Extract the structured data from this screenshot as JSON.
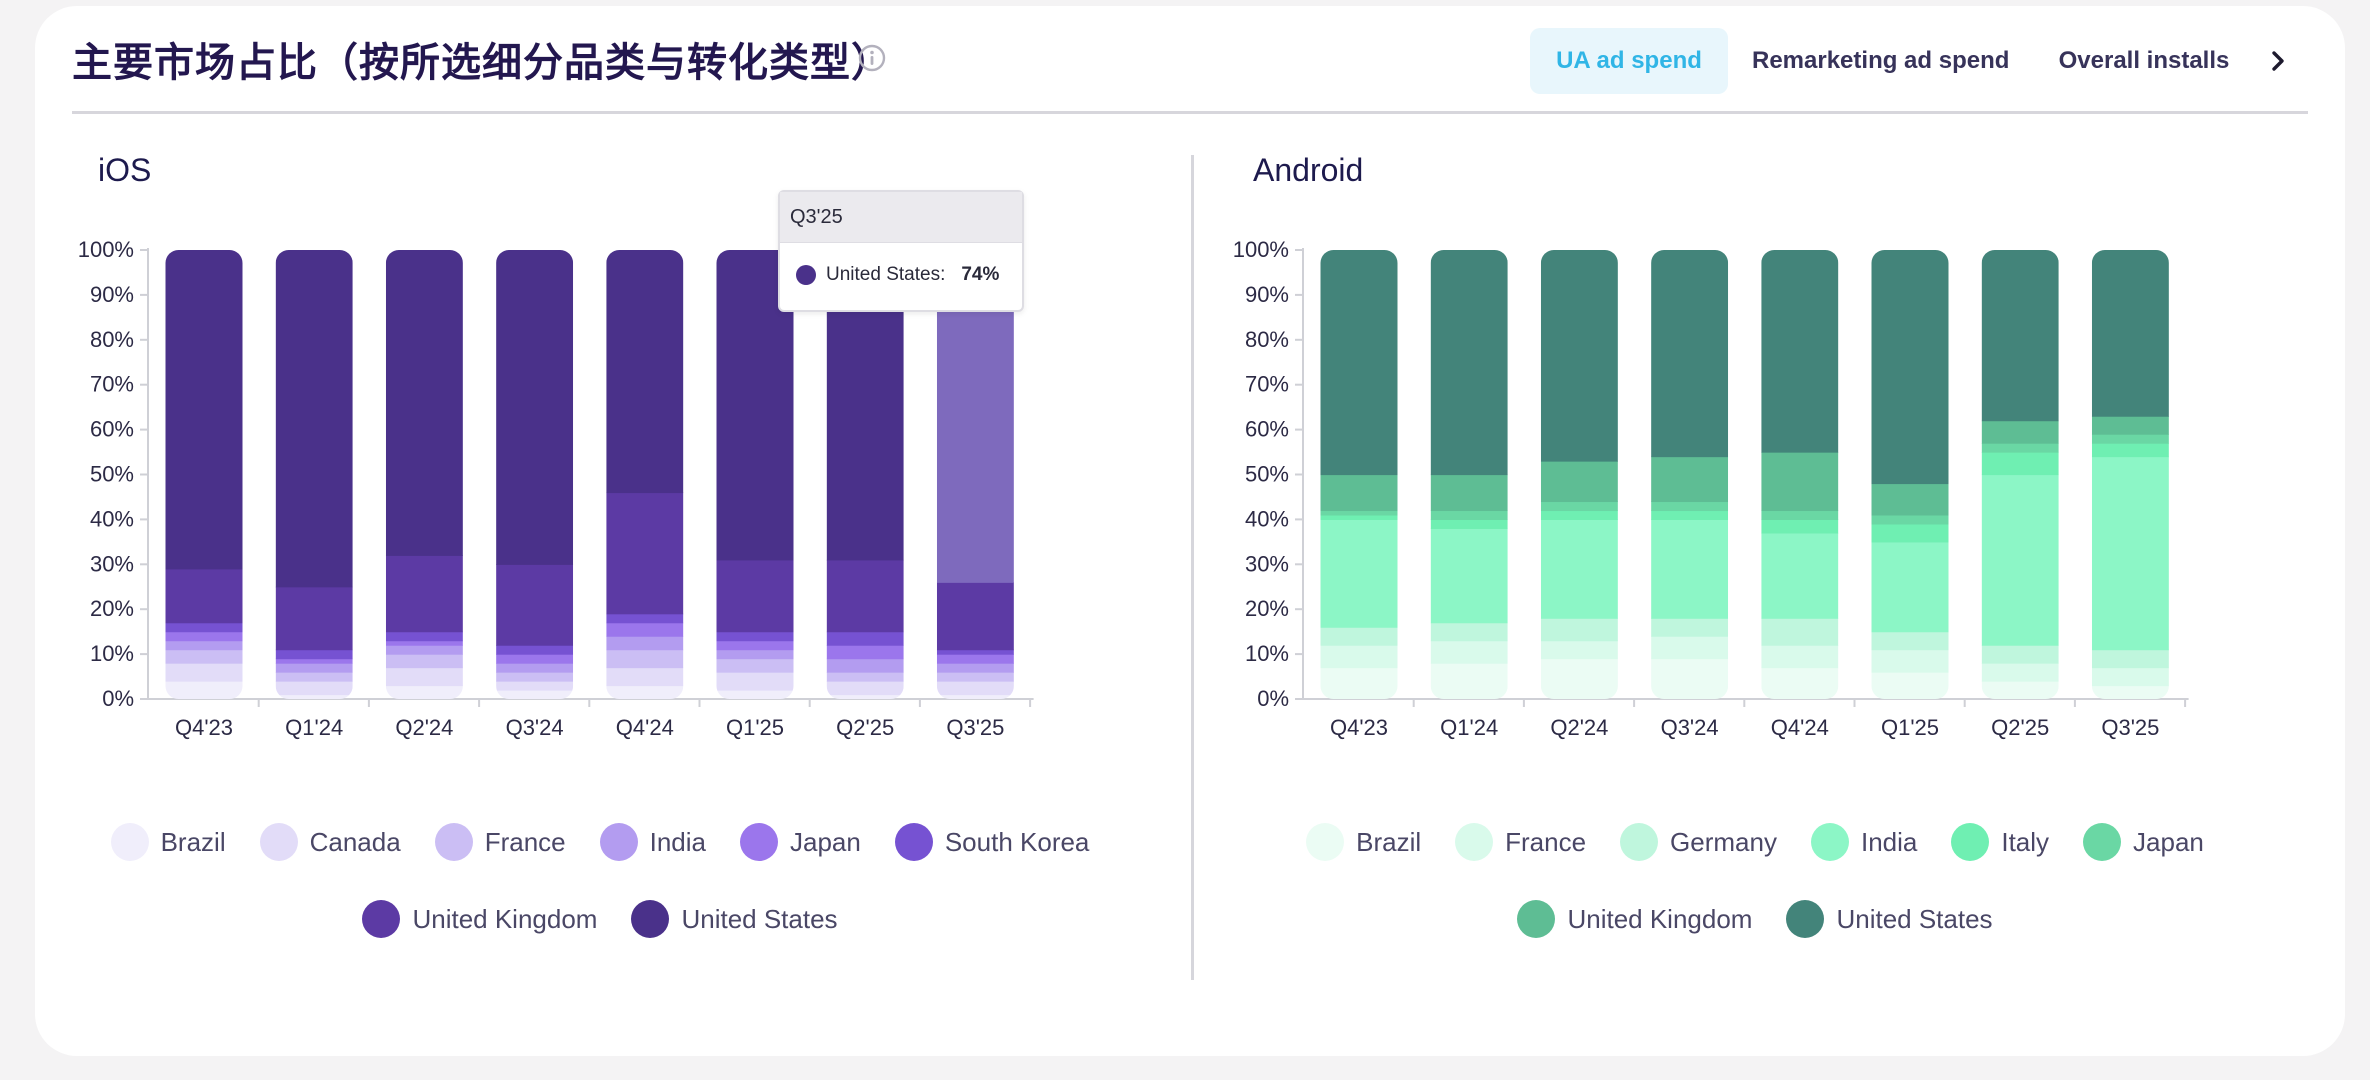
{
  "header": {
    "title": "主要市场占比（按所选细分品类与转化类型）",
    "tabs": [
      "UA ad spend",
      "Remarketing ad spend",
      "Overall installs"
    ],
    "active_tab": "UA ad spend",
    "accent_color": "#30b5e6"
  },
  "panels": {
    "ios_title": "iOS",
    "android_title": "Android"
  },
  "tooltip": {
    "period": "Q3'25",
    "label": "United States:",
    "value": "74%"
  },
  "chart_data": [
    {
      "type": "bar",
      "stacked": true,
      "title": "iOS",
      "categories": [
        "Q4'23",
        "Q1'24",
        "Q2'24",
        "Q3'24",
        "Q4'24",
        "Q1'25",
        "Q2'25",
        "Q3'25"
      ],
      "y_ticks": [
        "0%",
        "10%",
        "20%",
        "30%",
        "40%",
        "50%",
        "60%",
        "70%",
        "80%",
        "90%",
        "100%"
      ],
      "ylim": [
        0,
        100
      ],
      "grid": false,
      "legend_position": "bottom",
      "series": [
        {
          "name": "Brazil",
          "color": "#f0eefb",
          "values": [
            4,
            1,
            3,
            2,
            3,
            2,
            1,
            1
          ]
        },
        {
          "name": "Canada",
          "color": "#e2dcf8",
          "values": [
            4,
            3,
            4,
            2,
            4,
            4,
            3,
            3
          ]
        },
        {
          "name": "France",
          "color": "#cbbef4",
          "values": [
            3,
            2,
            3,
            2,
            4,
            3,
            2,
            2
          ]
        },
        {
          "name": "India",
          "color": "#b39cf0",
          "values": [
            2,
            2,
            2,
            2,
            3,
            2,
            3,
            2
          ]
        },
        {
          "name": "Japan",
          "color": "#9b76ec",
          "values": [
            2,
            1,
            1,
            2,
            3,
            2,
            3,
            2
          ]
        },
        {
          "name": "South Korea",
          "color": "#7652d2",
          "values": [
            2,
            2,
            2,
            2,
            2,
            2,
            3,
            1
          ]
        },
        {
          "name": "United Kingdom",
          "color": "#5c3aa4",
          "values": [
            12,
            14,
            17,
            18,
            27,
            16,
            16,
            15
          ]
        },
        {
          "name": "United States",
          "color": "#4a318a",
          "values": [
            71,
            75,
            68,
            70,
            54,
            69,
            69,
            74
          ]
        }
      ],
      "highlighted_bar": "Q3'25"
    },
    {
      "type": "bar",
      "stacked": true,
      "title": "Android",
      "categories": [
        "Q4'23",
        "Q1'24",
        "Q2'24",
        "Q3'24",
        "Q4'24",
        "Q1'25",
        "Q2'25",
        "Q3'25"
      ],
      "y_ticks": [
        "0%",
        "10%",
        "20%",
        "30%",
        "40%",
        "50%",
        "60%",
        "70%",
        "80%",
        "90%",
        "100%"
      ],
      "ylim": [
        0,
        100
      ],
      "grid": false,
      "legend_position": "bottom",
      "series": [
        {
          "name": "Brazil",
          "color": "#ebfcf4",
          "values": [
            7,
            8,
            9,
            9,
            7,
            6,
            4,
            3
          ]
        },
        {
          "name": "France",
          "color": "#d9faeb",
          "values": [
            5,
            5,
            4,
            5,
            5,
            5,
            4,
            4
          ]
        },
        {
          "name": "Germany",
          "color": "#bff6dd",
          "values": [
            4,
            4,
            5,
            4,
            6,
            4,
            4,
            4
          ]
        },
        {
          "name": "India",
          "color": "#8cf6c6",
          "values": [
            24,
            21,
            22,
            22,
            19,
            20,
            38,
            43
          ]
        },
        {
          "name": "Italy",
          "color": "#6fefb2",
          "values": [
            1,
            2,
            2,
            2,
            3,
            4,
            5,
            3
          ]
        },
        {
          "name": "Japan",
          "color": "#6ad7a4",
          "values": [
            1,
            2,
            2,
            2,
            2,
            2,
            2,
            2
          ]
        },
        {
          "name": "United Kingdom",
          "color": "#5ebd94",
          "values": [
            8,
            8,
            9,
            10,
            13,
            7,
            5,
            4
          ]
        },
        {
          "name": "United States",
          "color": "#43847a",
          "values": [
            50,
            50,
            47,
            46,
            45,
            52,
            38,
            37
          ]
        }
      ]
    }
  ]
}
